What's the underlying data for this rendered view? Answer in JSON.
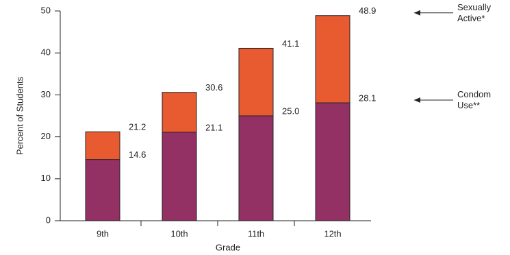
{
  "chart_data": {
    "type": "overlap-bar",
    "x_label": "Grade",
    "y_label": "Percent of Students",
    "categories": [
      "9th",
      "10th",
      "11th",
      "12th"
    ],
    "series": [
      {
        "name": "Sexually Active*",
        "color": "#e85b31",
        "values": [
          21.2,
          30.6,
          41.1,
          48.9
        ]
      },
      {
        "name": "Condom Use**",
        "color": "#933064",
        "values": [
          14.6,
          21.1,
          25.0,
          28.1
        ],
        "value_labels": [
          "14.6",
          "21.1",
          "25.0",
          "28.1"
        ]
      }
    ],
    "ylim": [
      0,
      50
    ],
    "yticks": [
      0,
      10,
      20,
      30,
      40,
      50
    ],
    "grid": false
  }
}
